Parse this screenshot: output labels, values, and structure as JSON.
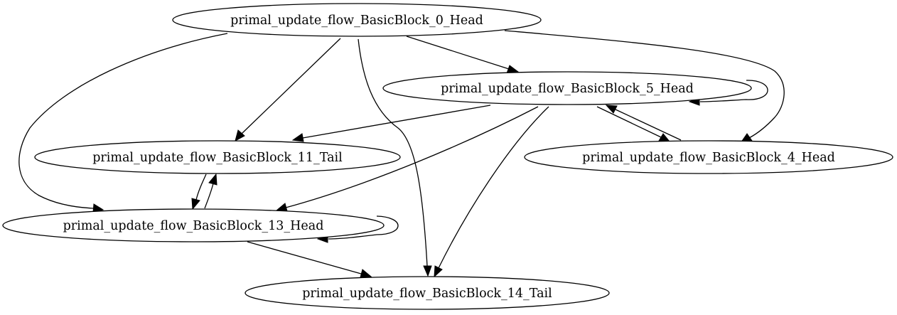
{
  "graph": {
    "nodes": [
      {
        "id": "bb0",
        "label": "primal_update_flow_BasicBlock_0_Head"
      },
      {
        "id": "bb5",
        "label": "primal_update_flow_BasicBlock_5_Head"
      },
      {
        "id": "bb11",
        "label": "primal_update_flow_BasicBlock_11_Tail"
      },
      {
        "id": "bb4",
        "label": "primal_update_flow_BasicBlock_4_Head"
      },
      {
        "id": "bb13",
        "label": "primal_update_flow_BasicBlock_13_Head"
      },
      {
        "id": "bb14",
        "label": "primal_update_flow_BasicBlock_14_Tail"
      }
    ],
    "edges": [
      {
        "from": "bb0",
        "to": "bb5"
      },
      {
        "from": "bb0",
        "to": "bb11"
      },
      {
        "from": "bb0",
        "to": "bb4"
      },
      {
        "from": "bb0",
        "to": "bb13"
      },
      {
        "from": "bb0",
        "to": "bb14"
      },
      {
        "from": "bb5",
        "to": "bb5"
      },
      {
        "from": "bb5",
        "to": "bb11"
      },
      {
        "from": "bb5",
        "to": "bb4"
      },
      {
        "from": "bb5",
        "to": "bb13"
      },
      {
        "from": "bb5",
        "to": "bb14"
      },
      {
        "from": "bb4",
        "to": "bb5"
      },
      {
        "from": "bb11",
        "to": "bb13"
      },
      {
        "from": "bb13",
        "to": "bb11"
      },
      {
        "from": "bb13",
        "to": "bb13"
      },
      {
        "from": "bb13",
        "to": "bb14"
      }
    ]
  }
}
